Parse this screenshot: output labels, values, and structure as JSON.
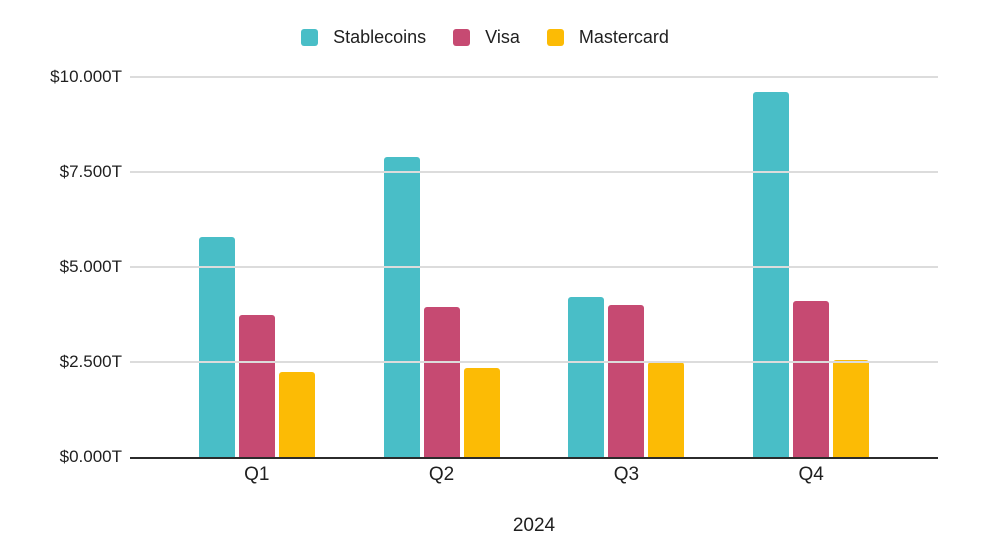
{
  "chart_data": {
    "type": "bar",
    "title": "",
    "categories": [
      "Q1",
      "Q2",
      "Q3",
      "Q4"
    ],
    "series": [
      {
        "name": "Stablecoins",
        "color": "#49BEC7",
        "values": [
          5.8,
          7.9,
          4.2,
          9.6
        ]
      },
      {
        "name": "Visa",
        "color": "#C64A72",
        "values": [
          3.75,
          3.95,
          4.0,
          4.1
        ]
      },
      {
        "name": "Mastercard",
        "color": "#FCBB05",
        "values": [
          2.25,
          2.35,
          2.5,
          2.55
        ]
      }
    ],
    "xlabel": "2024",
    "ylabel": "",
    "ylim": [
      0,
      10
    ],
    "y_ticks": [
      {
        "label": "$10.000T",
        "value": 10
      },
      {
        "label": "$7.500T",
        "value": 7.5
      },
      {
        "label": "$5.000T",
        "value": 5
      },
      {
        "label": "$2.500T",
        "value": 2.5
      },
      {
        "label": "$0.000T",
        "value": 0
      }
    ],
    "grid": true,
    "legend_position": "top",
    "grid_color": "#dcdcdc",
    "baseline_color": "#2b2b2b",
    "text_color": "#1f1f1f",
    "background_color": "#ffffff"
  }
}
